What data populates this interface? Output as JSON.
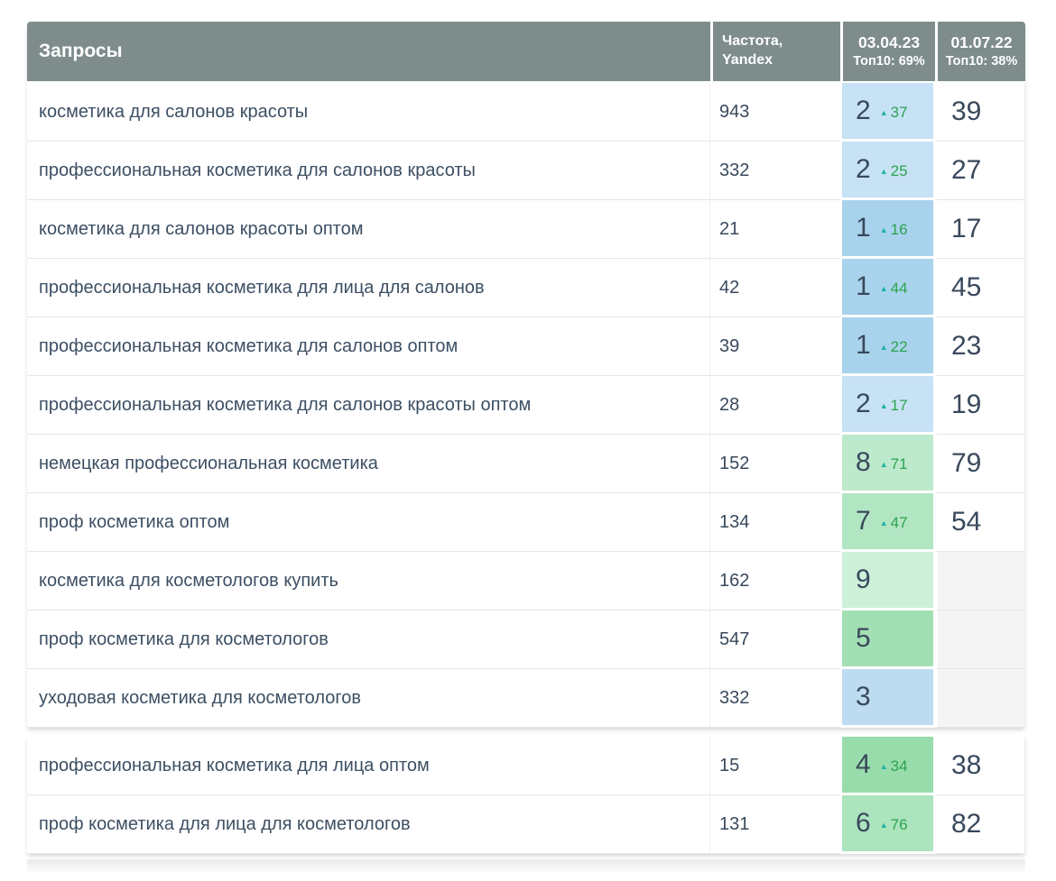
{
  "header": {
    "queries_label": "Запросы",
    "frequency_line1": "Частота,",
    "frequency_line2": "Yandex",
    "date_col_1": {
      "date": "03.04.23",
      "top10": "Топ10: 69%"
    },
    "date_col_2": {
      "date": "01.07.22",
      "top10": "Топ10: 38%"
    }
  },
  "colors": {
    "header_bg": "#7e8c8c",
    "header_text": "#ffffff",
    "query_text": "#3c4f63",
    "number_text": "#39495c",
    "delta_text": "#2ca34f",
    "arrow_color": "#1db3a5",
    "empty_cell_bg": "#f4f4f5",
    "position1_bg": "#a9d3ec",
    "position2_bg": "#c7e2f4",
    "position3_bg": "#bedcf1",
    "green_dark_bg": "#97dcaa",
    "green_light_bg": "#cdf0d9"
  },
  "sections": [
    {
      "rows": [
        {
          "query": "косметика для салонов красоты",
          "frequency": "943",
          "position": "2",
          "arrow": "▲",
          "delta": "37",
          "old_position": "39",
          "pos_bg": "#c7e2f4"
        },
        {
          "query": "профессиональная косметика для салонов красоты",
          "frequency": "332",
          "position": "2",
          "arrow": "▲",
          "delta": "25",
          "old_position": "27",
          "pos_bg": "#c7e2f4"
        },
        {
          "query": "косметика для салонов красоты оптом",
          "frequency": "21",
          "position": "1",
          "arrow": "▲",
          "delta": "16",
          "old_position": "17",
          "pos_bg": "#a9d3ec"
        },
        {
          "query": "профессиональная косметика для лица для салонов",
          "frequency": "42",
          "position": "1",
          "arrow": "▲",
          "delta": "44",
          "old_position": "45",
          "pos_bg": "#a9d3ec"
        },
        {
          "query": "профессиональная косметика для салонов оптом",
          "frequency": "39",
          "position": "1",
          "arrow": "▲",
          "delta": "22",
          "old_position": "23",
          "pos_bg": "#a9d3ec"
        },
        {
          "query": "профессиональная косметика для салонов красоты оптом",
          "frequency": "28",
          "position": "2",
          "arrow": "▲",
          "delta": "17",
          "old_position": "19",
          "pos_bg": "#c7e2f4"
        },
        {
          "query": "немецкая профессиональная косметика",
          "frequency": "152",
          "position": "8",
          "arrow": "▲",
          "delta": "71",
          "old_position": "79",
          "pos_bg": "#bde9cc"
        },
        {
          "query": "проф косметика оптом",
          "frequency": "134",
          "position": "7",
          "arrow": "▲",
          "delta": "47",
          "old_position": "54",
          "pos_bg": "#b2e6c3"
        },
        {
          "query": "косметика для косметологов купить",
          "frequency": "162",
          "position": "9",
          "old_bg": "#f4f4f5",
          "pos_bg": "#cdf0d9"
        },
        {
          "query": "проф косметика для косметологов",
          "frequency": "547",
          "position": "5",
          "old_bg": "#f4f4f5",
          "pos_bg": "#a2e0b4"
        },
        {
          "query": "уходовая косметика для косметологов",
          "frequency": "332",
          "position": "3",
          "old_bg": "#f4f4f5",
          "pos_bg": "#bedcf1"
        }
      ]
    },
    {
      "rows": [
        {
          "query": "профессиональная косметика для лица оптом",
          "frequency": "15",
          "position": "4",
          "arrow": "▲",
          "delta": "34",
          "old_position": "38",
          "pos_bg": "#97dcaa"
        },
        {
          "query": "проф косметика для лица для косметологов",
          "frequency": "131",
          "position": "6",
          "arrow": "▲",
          "delta": "76",
          "old_position": "82",
          "pos_bg": "#abe4bd"
        }
      ]
    }
  ]
}
